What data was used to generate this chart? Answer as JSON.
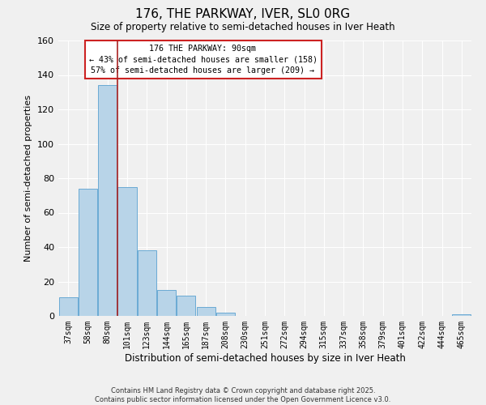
{
  "title": "176, THE PARKWAY, IVER, SL0 0RG",
  "subtitle": "Size of property relative to semi-detached houses in Iver Heath",
  "xlabel": "Distribution of semi-detached houses by size in Iver Heath",
  "ylabel": "Number of semi-detached properties",
  "bar_labels": [
    "37sqm",
    "58sqm",
    "80sqm",
    "101sqm",
    "123sqm",
    "144sqm",
    "165sqm",
    "187sqm",
    "208sqm",
    "230sqm",
    "251sqm",
    "272sqm",
    "294sqm",
    "315sqm",
    "337sqm",
    "358sqm",
    "379sqm",
    "401sqm",
    "422sqm",
    "444sqm",
    "465sqm"
  ],
  "bar_values": [
    11,
    74,
    134,
    75,
    38,
    15,
    12,
    5,
    2,
    0,
    0,
    0,
    0,
    0,
    0,
    0,
    0,
    0,
    0,
    0,
    1
  ],
  "bar_color": "#b8d4e8",
  "bar_edge_color": "#6aaad4",
  "vline_x": 2.5,
  "vline_color": "#aa2222",
  "annotation_title": "176 THE PARKWAY: 90sqm",
  "annotation_line1": "← 43% of semi-detached houses are smaller (158)",
  "annotation_line2": "57% of semi-detached houses are larger (209) →",
  "annotation_box_color": "#cc2222",
  "ylim": [
    0,
    160
  ],
  "yticks": [
    0,
    20,
    40,
    60,
    80,
    100,
    120,
    140,
    160
  ],
  "footer1": "Contains HM Land Registry data © Crown copyright and database right 2025.",
  "footer2": "Contains public sector information licensed under the Open Government Licence v3.0.",
  "bg_color": "#f0f0f0",
  "grid_color": "#ffffff"
}
